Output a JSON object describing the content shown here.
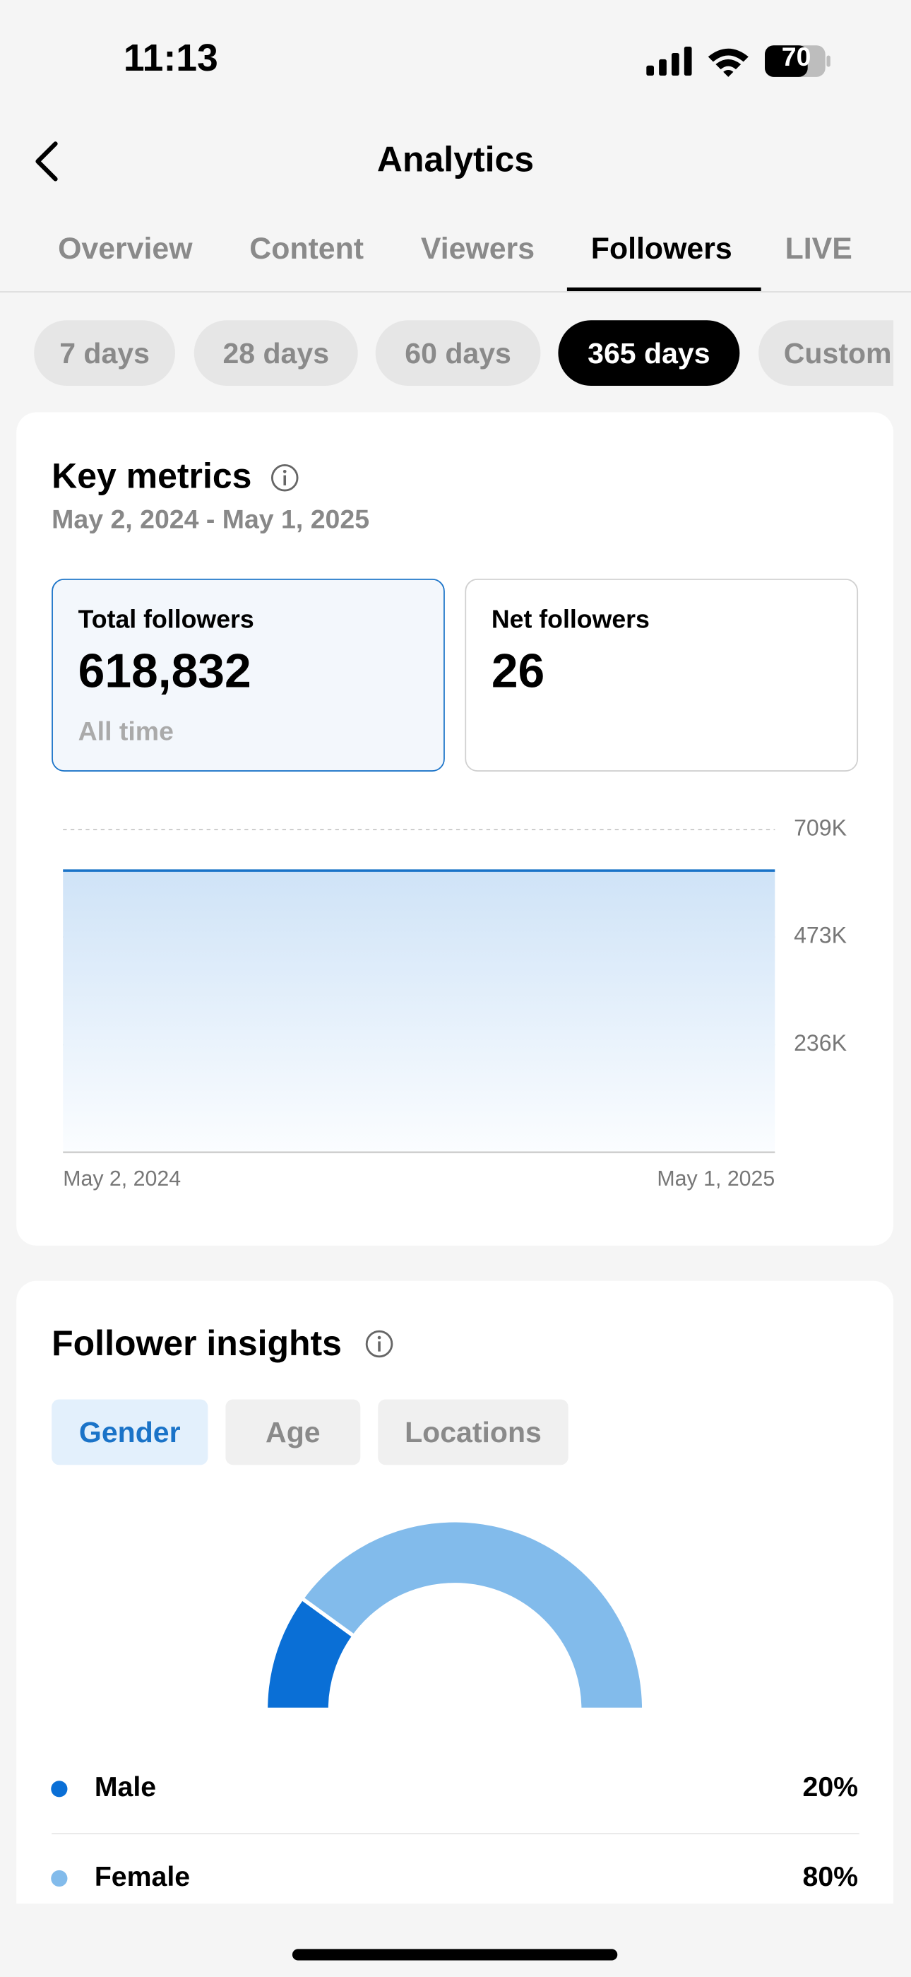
{
  "status_bar": {
    "time": "11:13",
    "battery": "70"
  },
  "header": {
    "title": "Analytics"
  },
  "tabs": {
    "items": [
      "Overview",
      "Content",
      "Viewers",
      "Followers",
      "LIVE"
    ],
    "selected": 3
  },
  "date_ranges": {
    "items": [
      "7 days",
      "28 days",
      "60 days",
      "365 days",
      "Custom"
    ],
    "selected": 3
  },
  "key_metrics": {
    "title": "Key metrics",
    "date_range": "May 2, 2024 - May 1, 2025",
    "cards": [
      {
        "label": "Total followers",
        "value": "618,832",
        "note": "All time"
      },
      {
        "label": "Net followers",
        "value": "26"
      }
    ]
  },
  "follower_insights": {
    "title": "Follower insights",
    "filters": [
      "Gender",
      "Age",
      "Locations"
    ],
    "selected": 0
  },
  "chart_data": [
    {
      "type": "area",
      "x": [
        "May 2, 2024",
        "May 1, 2025"
      ],
      "values": [
        618806,
        618832
      ],
      "color": "#1a73c8",
      "ylim": [
        0,
        709000
      ],
      "yticks": [
        {
          "value": 236000,
          "label": "236K"
        },
        {
          "value": 473000,
          "label": "473K"
        },
        {
          "value": 709000,
          "label": "709K"
        }
      ],
      "grid": true
    },
    {
      "type": "pie",
      "categories": [
        "Male",
        "Female"
      ],
      "values": [
        20,
        80
      ],
      "value_labels": [
        "20%",
        "80%"
      ],
      "colors": [
        "#0a6fd6",
        "#82bbeb"
      ]
    }
  ]
}
